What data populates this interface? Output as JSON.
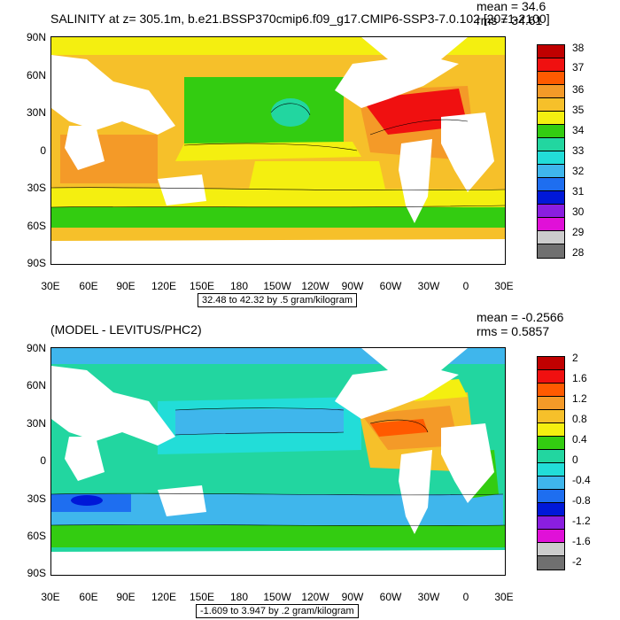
{
  "top": {
    "title": "SALINITY at z= 305.1m, b.e21.BSSP370cmip6.f09_g17.CMIP6-SSP3-7.0.102 [2071-2100]",
    "mean_text": "mean = 34.6",
    "rms_text": "rms = 34.61",
    "caption": "32.48 to 42.32 by .5 gram/kilogram",
    "lat_labels": [
      "90N",
      "60N",
      "30N",
      "0",
      "30S",
      "60S",
      "90S"
    ],
    "lon_labels": [
      "30E",
      "60E",
      "90E",
      "120E",
      "150E",
      "180",
      "150W",
      "120W",
      "90W",
      "60W",
      "30W",
      "0",
      "30E"
    ],
    "colorbar": {
      "labels": [
        "38",
        "37",
        "36",
        "35",
        "34",
        "33",
        "32",
        "31",
        "30",
        "29",
        "28"
      ],
      "colors": [
        "#c00000",
        "#f01010",
        "#ff5a00",
        "#f49a28",
        "#f6c02a",
        "#f4ef10",
        "#33cc11",
        "#22d6a0",
        "#22ddd8",
        "#3fb6ec",
        "#1e6ef0",
        "#0018d8",
        "#8a1ee0",
        "#e010d8",
        "#cccccc",
        "#707070"
      ]
    }
  },
  "bottom": {
    "title": "(MODEL - LEVITUS/PHC2)",
    "mean_text": "mean = -0.2566",
    "rms_text": "rms = 0.5857",
    "caption": "-1.609 to 3.947 by .2 gram/kilogram",
    "lat_labels": [
      "90N",
      "60N",
      "30N",
      "0",
      "30S",
      "60S",
      "90S"
    ],
    "lon_labels": [
      "30E",
      "60E",
      "90E",
      "120E",
      "150E",
      "180",
      "150W",
      "120W",
      "90W",
      "60W",
      "30W",
      "0",
      "30E"
    ],
    "colorbar": {
      "labels": [
        "2",
        "1.6",
        "1.2",
        "0.8",
        "0.4",
        "0",
        "-0.4",
        "-0.8",
        "-1.2",
        "-1.6",
        "-2"
      ],
      "colors": [
        "#c00000",
        "#f01010",
        "#ff5a00",
        "#f49a28",
        "#f6c02a",
        "#f4ef10",
        "#33cc11",
        "#22d6a0",
        "#22ddd8",
        "#3fb6ec",
        "#1e6ef0",
        "#0018d8",
        "#8a1ee0",
        "#e010d8",
        "#cccccc",
        "#707070"
      ]
    }
  }
}
